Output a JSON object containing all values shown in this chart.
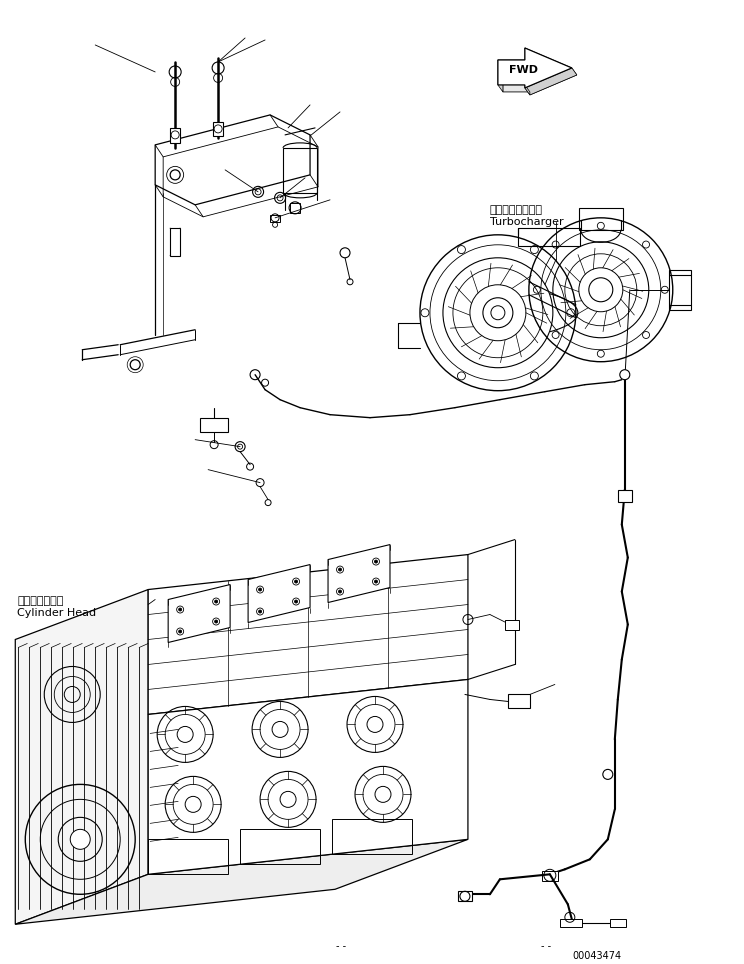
{
  "background_color": "#ffffff",
  "line_color": "#000000",
  "fwd_label": "FWD",
  "turbo_label_jp": "ターボチャージャ",
  "turbo_label_en": "Turbocharger",
  "cylinder_label_jp": "シリンダヘッド",
  "cylinder_label_en": "Cylinder Head",
  "part_number": "00043474",
  "dash_marks": "- -",
  "fig_size": [
    7.44,
    9.64
  ],
  "dpi": 100
}
